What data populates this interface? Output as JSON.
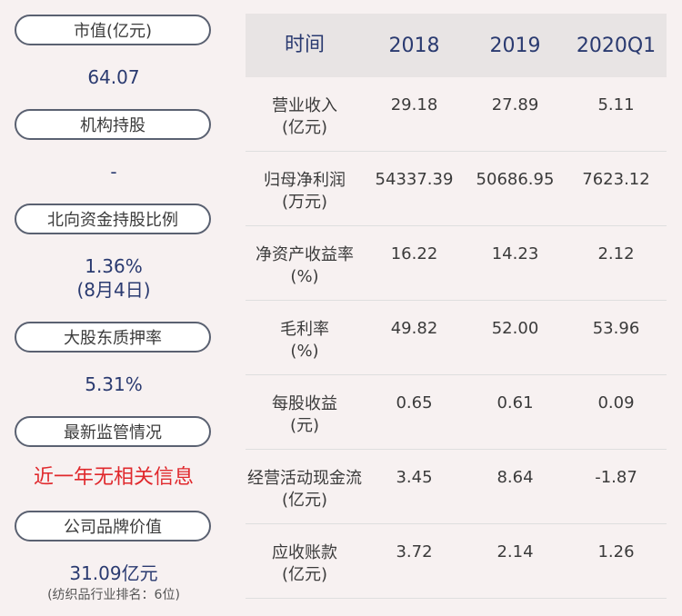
{
  "left": {
    "items": [
      {
        "label": "市值(亿元)",
        "value": "64.07"
      },
      {
        "label": "机构持股",
        "value": "-"
      },
      {
        "label": "北向资金持股比例",
        "value": "1.36%",
        "value2": "(8月4日)"
      },
      {
        "label": "大股东质押率",
        "value": "5.31%"
      },
      {
        "label": "最新监管情况",
        "value": "近一年无相关信息"
      },
      {
        "label": "公司品牌价值",
        "value": "31.09亿元",
        "note": "(纺织品行业排名：6位)"
      }
    ]
  },
  "table": {
    "headers": [
      "时间",
      "2018",
      "2019",
      "2020Q1"
    ],
    "rows": [
      {
        "name": "营业收入",
        "unit": "(亿元)",
        "values": [
          "29.18",
          "27.89",
          "5.11"
        ]
      },
      {
        "name": "归母净利润",
        "unit": "(万元)",
        "values": [
          "54337.39",
          "50686.95",
          "7623.12"
        ]
      },
      {
        "name": "净资产收益率",
        "unit": "(%)",
        "values": [
          "16.22",
          "14.23",
          "2.12"
        ]
      },
      {
        "name": "毛利率",
        "unit": "(%)",
        "values": [
          "49.82",
          "52.00",
          "53.96"
        ]
      },
      {
        "name": "每股收益",
        "unit": "(元)",
        "values": [
          "0.65",
          "0.61",
          "0.09"
        ]
      },
      {
        "name": "经营活动现金流",
        "unit": "(亿元)",
        "values": [
          "3.45",
          "8.64",
          "-1.87"
        ]
      },
      {
        "name": "应收账款",
        "unit": "(亿元)",
        "values": [
          "3.72",
          "2.14",
          "1.26"
        ]
      }
    ]
  }
}
